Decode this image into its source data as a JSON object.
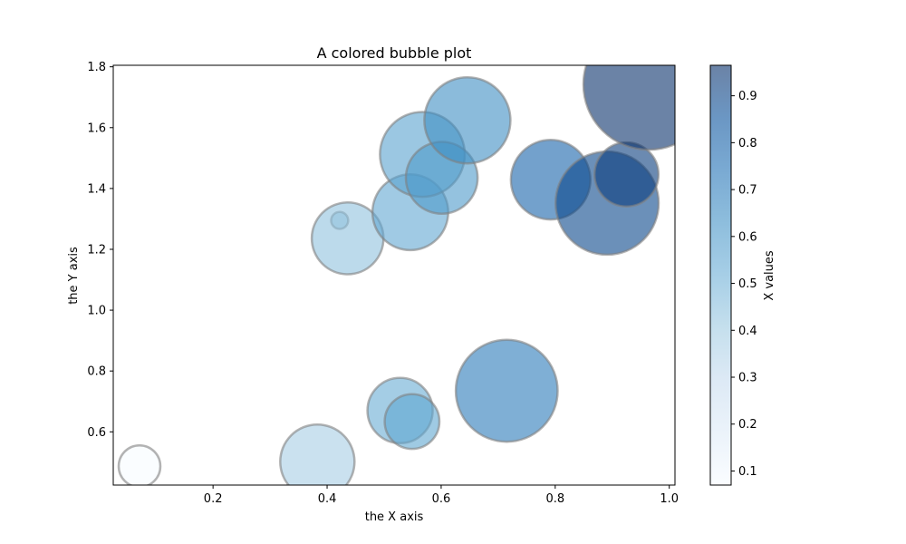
{
  "chart_data": {
    "type": "scatter",
    "title": "A colored bubble plot",
    "xlabel": "the X axis",
    "ylabel": "the Y axis",
    "xlim": [
      0.025,
      1.01
    ],
    "ylim": [
      0.425,
      1.805
    ],
    "xticks": [
      0.2,
      0.4,
      0.6,
      0.8,
      1.0
    ],
    "yticks": [
      0.6,
      0.8,
      1.0,
      1.2,
      1.4,
      1.6,
      1.8
    ],
    "grid": false,
    "colormap": "Blues",
    "colorbar": {
      "label": "X values",
      "range": [
        0.07,
        0.965
      ],
      "ticks": [
        0.1,
        0.2,
        0.3,
        0.4,
        0.5,
        0.6,
        0.7,
        0.8,
        0.9
      ]
    },
    "bubble_alpha": 0.6,
    "bubble_edge_color": "#808080",
    "points": [
      {
        "x": 0.071,
        "y": 0.487,
        "size": 0.32
      },
      {
        "x": 0.383,
        "y": 0.502,
        "size": 0.57
      },
      {
        "x": 0.422,
        "y": 1.295,
        "size": 0.13
      },
      {
        "x": 0.436,
        "y": 1.236,
        "size": 0.55
      },
      {
        "x": 0.528,
        "y": 0.67,
        "size": 0.5
      },
      {
        "x": 0.546,
        "y": 1.322,
        "size": 0.58
      },
      {
        "x": 0.549,
        "y": 0.634,
        "size": 0.42
      },
      {
        "x": 0.567,
        "y": 1.512,
        "size": 0.65
      },
      {
        "x": 0.601,
        "y": 1.435,
        "size": 0.55
      },
      {
        "x": 0.646,
        "y": 1.624,
        "size": 0.66
      },
      {
        "x": 0.715,
        "y": 0.735,
        "size": 0.78
      },
      {
        "x": 0.792,
        "y": 1.429,
        "size": 0.61
      },
      {
        "x": 0.891,
        "y": 1.352,
        "size": 0.79
      },
      {
        "x": 0.925,
        "y": 1.446,
        "size": 0.49
      },
      {
        "x": 0.964,
        "y": 1.742,
        "size": 1.0
      }
    ]
  }
}
